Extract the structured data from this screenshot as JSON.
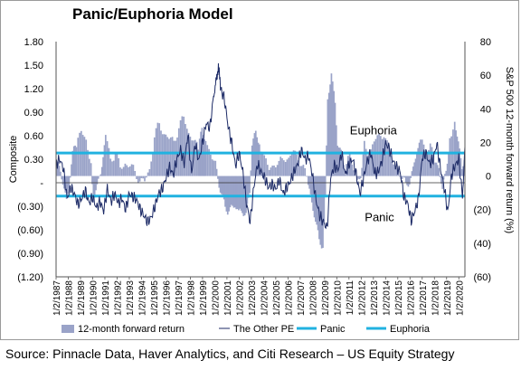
{
  "chart_data": {
    "type": "bar+line",
    "title": "Panic/Euphoria Model",
    "source": "Source: Pinnacle Data, Haver Analytics, and Citi Research – US Equity Strategy",
    "left_axis": {
      "label": "Composite",
      "range": [
        -1.2,
        1.8
      ],
      "tick_values": [
        1.8,
        1.5,
        1.2,
        0.9,
        0.6,
        0.3,
        0,
        -0.3,
        -0.6,
        -0.9,
        -1.2
      ],
      "tick_labels": [
        "1.80",
        "1.50",
        "1.20",
        "0.90",
        "0.60",
        "0.30",
        "-",
        "(0.30)",
        "(0.60)",
        "(0.90)",
        "(1.20)"
      ]
    },
    "right_axis": {
      "label": "S&P 500 12-month forward return (%)",
      "range": [
        -60,
        80
      ],
      "tick_values": [
        80,
        60,
        40,
        20,
        0,
        -20,
        -40,
        -60
      ],
      "tick_labels": [
        "80",
        "60",
        "40",
        "20",
        "0",
        "(20)",
        "(40)",
        "(60)"
      ]
    },
    "x_axis": {
      "range": [
        1987.0,
        2020.5
      ],
      "tick_values": [
        1987,
        1988,
        1989,
        1990,
        1991,
        1992,
        1993,
        1994,
        1995,
        1996,
        1997,
        1998,
        1999,
        2000,
        2001,
        2002,
        2003,
        2004,
        2005,
        2006,
        2007,
        2008,
        2009,
        2010,
        2011,
        2012,
        2013,
        2014,
        2015,
        2016,
        2017,
        2018,
        2019,
        2020
      ],
      "tick_labels": [
        "1/2/1987",
        "1/2/1988",
        "1/2/1989",
        "1/2/1990",
        "1/2/1991",
        "1/2/1992",
        "1/2/1993",
        "1/2/1994",
        "1/2/1995",
        "1/2/1996",
        "1/2/1997",
        "1/2/1998",
        "1/2/1999",
        "1/2/2000",
        "1/2/2001",
        "1/2/2002",
        "1/2/2003",
        "1/2/2004",
        "1/2/2005",
        "1/2/2006",
        "1/2/2007",
        "1/2/2008",
        "1/2/2009",
        "1/2/2010",
        "1/2/2011",
        "1/2/2012",
        "1/2/2013",
        "1/2/2014",
        "1/2/2015",
        "1/2/2016",
        "1/2/2017",
        "1/2/2018",
        "1/2/2019",
        "1/2/2020"
      ]
    },
    "annotations": [
      {
        "text": "Euphoria",
        "x": 2013.0,
        "y": 0.62
      },
      {
        "text": "Panic",
        "x": 2013.5,
        "y": -0.49
      }
    ],
    "legend": {
      "position": "bottom",
      "entries": [
        {
          "label": "12-month forward return",
          "kind": "area",
          "color": "#9aa3c8"
        },
        {
          "label": "The Other PE",
          "kind": "line",
          "color": "#1c2a66"
        },
        {
          "label": "Panic",
          "kind": "hline",
          "color": "#21b2e0"
        },
        {
          "label": "Euphoria",
          "kind": "hline",
          "color": "#21b2e0"
        }
      ]
    },
    "threshold_lines": {
      "euphoria_level": 0.38,
      "panic_level": -0.17,
      "color": "#21b2e0"
    },
    "series": [
      {
        "name": "12-month forward return",
        "axis": "right",
        "kind": "area",
        "color": "#9aa3c8",
        "x": [
          1987.0,
          1987.3,
          1987.6,
          1987.8,
          1988.0,
          1988.3,
          1988.6,
          1989.0,
          1989.4,
          1989.8,
          1990.0,
          1990.3,
          1990.6,
          1990.8,
          1991.0,
          1991.4,
          1991.8,
          1992.2,
          1992.6,
          1993.0,
          1993.4,
          1993.8,
          1994.2,
          1994.6,
          1995.0,
          1995.4,
          1995.8,
          1996.2,
          1996.6,
          1997.0,
          1997.4,
          1997.8,
          1998.2,
          1998.6,
          1998.9,
          1999.2,
          1999.6,
          2000.0,
          2000.2,
          2000.5,
          2000.8,
          2001.0,
          2001.3,
          2001.6,
          2001.9,
          2002.2,
          2002.5,
          2002.8,
          2003.0,
          2003.3,
          2003.6,
          2004.0,
          2004.4,
          2004.8,
          2005.2,
          2005.6,
          2006.0,
          2006.4,
          2006.8,
          2007.2,
          2007.6,
          2007.9,
          2008.2,
          2008.5,
          2008.8,
          2009.0,
          2009.2,
          2009.5,
          2009.8,
          2010.0,
          2010.3,
          2010.6,
          2011.0,
          2011.3,
          2011.6,
          2011.9,
          2012.2,
          2012.6,
          2013.0,
          2013.4,
          2013.8,
          2014.2,
          2014.6,
          2015.0,
          2015.3,
          2015.6,
          2015.9,
          2016.2,
          2016.5,
          2016.8,
          2017.2,
          2017.6,
          2018.0,
          2018.3,
          2018.6,
          2018.9,
          2019.2,
          2019.6,
          2019.9,
          2020.2,
          2020.5
        ],
        "values": [
          8,
          2,
          -8,
          -14,
          -4,
          12,
          18,
          26,
          22,
          8,
          -12,
          -8,
          2,
          12,
          24,
          10,
          14,
          4,
          8,
          6,
          2,
          -2,
          -4,
          4,
          24,
          30,
          26,
          22,
          20,
          30,
          34,
          26,
          22,
          14,
          28,
          22,
          14,
          6,
          0,
          -10,
          -20,
          -22,
          -18,
          -16,
          -24,
          -20,
          -22,
          -10,
          18,
          26,
          22,
          10,
          4,
          8,
          6,
          12,
          10,
          14,
          12,
          4,
          -4,
          -16,
          -28,
          -38,
          -40,
          -14,
          44,
          62,
          44,
          20,
          12,
          4,
          12,
          4,
          -4,
          2,
          18,
          14,
          20,
          24,
          26,
          14,
          8,
          4,
          -2,
          -6,
          -2,
          4,
          14,
          20,
          16,
          18,
          8,
          6,
          -10,
          4,
          24,
          32,
          20,
          6,
          14
        ]
      },
      {
        "name": "The Other PE",
        "axis": "left",
        "kind": "line",
        "color": "#1c2a66",
        "x": [
          1987.0,
          1987.3,
          1987.6,
          1987.9,
          1988.2,
          1988.5,
          1988.8,
          1989.1,
          1989.4,
          1989.7,
          1990.0,
          1990.3,
          1990.6,
          1990.9,
          1991.2,
          1991.5,
          1991.8,
          1992.1,
          1992.4,
          1992.7,
          1993.0,
          1993.3,
          1993.6,
          1993.9,
          1994.2,
          1994.5,
          1994.8,
          1995.1,
          1995.4,
          1995.7,
          1996.0,
          1996.3,
          1996.6,
          1996.9,
          1997.2,
          1997.5,
          1997.8,
          1998.1,
          1998.4,
          1998.7,
          1999.0,
          1999.3,
          1999.6,
          1999.9,
          2000.1,
          2000.3,
          2000.5,
          2000.8,
          2001.1,
          2001.4,
          2001.7,
          2002.0,
          2002.3,
          2002.6,
          2002.9,
          2003.2,
          2003.5,
          2003.8,
          2004.1,
          2004.4,
          2004.7,
          2005.0,
          2005.3,
          2005.6,
          2005.9,
          2006.2,
          2006.5,
          2006.8,
          2007.1,
          2007.4,
          2007.7,
          2008.0,
          2008.3,
          2008.6,
          2008.9,
          2009.2,
          2009.5,
          2009.8,
          2010.1,
          2010.4,
          2010.7,
          2011.0,
          2011.3,
          2011.6,
          2011.9,
          2012.2,
          2012.5,
          2012.8,
          2013.1,
          2013.4,
          2013.7,
          2014.0,
          2014.3,
          2014.6,
          2014.9,
          2015.2,
          2015.5,
          2015.8,
          2016.1,
          2016.4,
          2016.7,
          2017.0,
          2017.3,
          2017.6,
          2017.9,
          2018.2,
          2018.5,
          2018.8,
          2019.1,
          2019.4,
          2019.7,
          2020.0,
          2020.3,
          2020.5
        ],
        "values": [
          0.24,
          0.3,
          0.18,
          -0.2,
          -0.06,
          -0.14,
          -0.28,
          -0.2,
          -0.1,
          -0.26,
          -0.18,
          -0.32,
          -0.24,
          -0.36,
          -0.08,
          -0.24,
          -0.14,
          -0.26,
          -0.2,
          -0.34,
          -0.14,
          -0.18,
          -0.22,
          -0.34,
          -0.42,
          -0.5,
          -0.44,
          -0.3,
          -0.14,
          -0.08,
          0.06,
          0.2,
          0.1,
          0.3,
          0.42,
          0.24,
          0.62,
          0.12,
          0.5,
          0.28,
          0.52,
          0.76,
          0.7,
          1.1,
          1.28,
          1.48,
          1.2,
          1.06,
          0.72,
          0.5,
          0.22,
          0.38,
          0.14,
          -0.26,
          -0.5,
          -0.06,
          0.24,
          0.14,
          0.06,
          -0.06,
          -0.02,
          -0.08,
          0.04,
          -0.14,
          -0.06,
          0.02,
          0.14,
          0.24,
          0.42,
          0.3,
          0.34,
          0.1,
          -0.22,
          -0.42,
          -0.5,
          -0.58,
          0.06,
          0.22,
          0.16,
          0.38,
          0.1,
          0.24,
          0.3,
          0.1,
          -0.14,
          0.06,
          0.28,
          0.38,
          0.12,
          0.14,
          0.28,
          0.5,
          0.44,
          0.28,
          0.2,
          0.14,
          -0.18,
          -0.26,
          -0.48,
          -0.36,
          -0.2,
          0.32,
          0.38,
          0.24,
          0.3,
          0.5,
          0.18,
          -0.06,
          -0.38,
          0.1,
          0.22,
          0.3,
          -0.18,
          0.46
        ]
      }
    ]
  }
}
